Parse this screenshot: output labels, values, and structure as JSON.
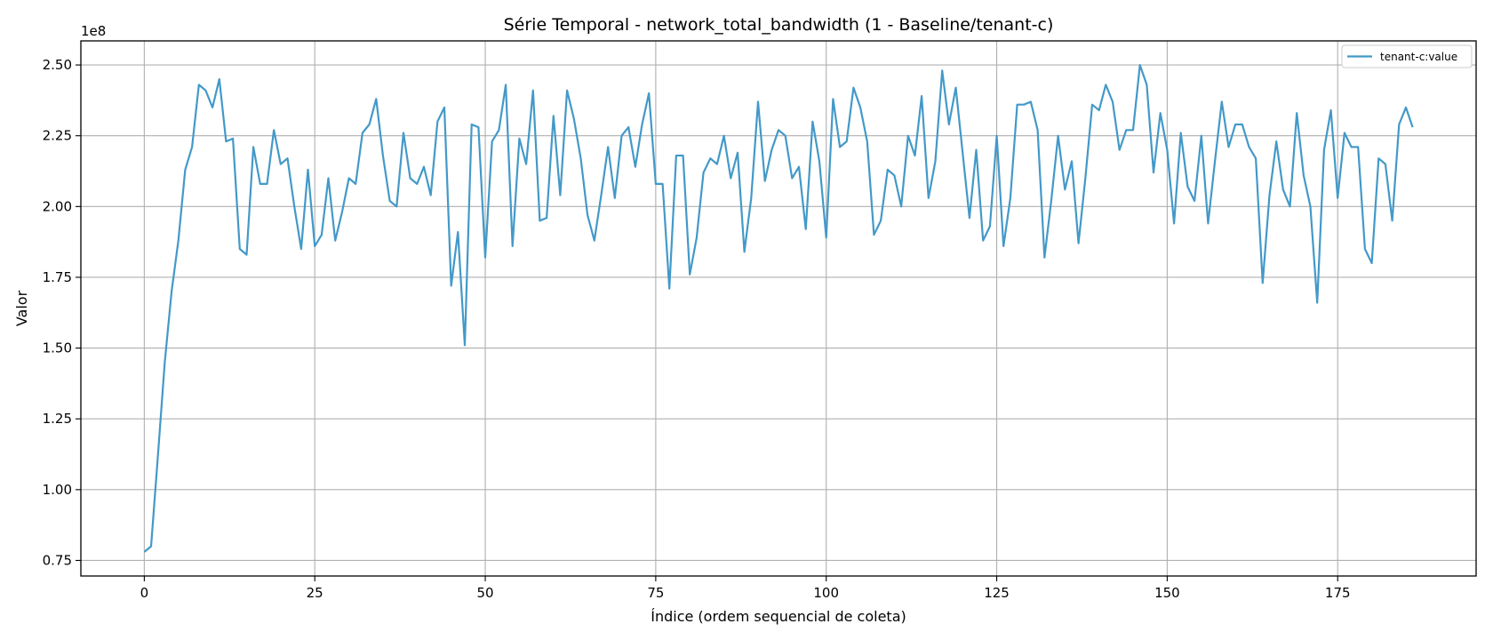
{
  "chart_data": {
    "type": "line",
    "title": "Série Temporal - network_total_bandwidth (1 - Baseline/tenant-c)",
    "xlabel": "Índice (ordem sequencial de coleta)",
    "ylabel": "Valor",
    "y_offset_label": "1e8",
    "y_scale": 100000000,
    "xlim": [
      -9.3,
      195.3
    ],
    "ylim": [
      0.695,
      2.585
    ],
    "x_ticks": [
      0,
      25,
      50,
      75,
      100,
      125,
      150,
      175
    ],
    "x_tick_labels": [
      "0",
      "25",
      "50",
      "75",
      "100",
      "125",
      "150",
      "175"
    ],
    "y_ticks": [
      0.75,
      1.0,
      1.25,
      1.5,
      1.75,
      2.0,
      2.25,
      2.5
    ],
    "y_tick_labels": [
      "0.75",
      "1.00",
      "1.25",
      "1.50",
      "1.75",
      "2.00",
      "2.25",
      "2.50"
    ],
    "grid": true,
    "legend_position": "top-right",
    "color": "#4399c8",
    "series": [
      {
        "name": "tenant-c:value",
        "x_start": 0,
        "values": [
          0.78,
          0.8,
          1.12,
          1.45,
          1.7,
          1.88,
          2.13,
          2.21,
          2.43,
          2.41,
          2.35,
          2.45,
          2.23,
          2.24,
          1.85,
          1.83,
          2.21,
          2.08,
          2.08,
          2.27,
          2.15,
          2.17,
          2.0,
          1.85,
          2.13,
          1.86,
          1.9,
          2.1,
          1.88,
          1.98,
          2.1,
          2.08,
          2.26,
          2.29,
          2.38,
          2.18,
          2.02,
          2.0,
          2.26,
          2.1,
          2.08,
          2.14,
          2.04,
          2.3,
          2.35,
          1.72,
          1.91,
          1.51,
          2.29,
          2.28,
          1.82,
          2.23,
          2.27,
          2.43,
          1.86,
          2.24,
          2.15,
          2.41,
          1.95,
          1.96,
          2.32,
          2.04,
          2.41,
          2.31,
          2.17,
          1.97,
          1.88,
          2.04,
          2.21,
          2.03,
          2.25,
          2.28,
          2.14,
          2.29,
          2.4,
          2.08,
          2.08,
          1.71,
          2.18,
          2.18,
          1.76,
          1.89,
          2.12,
          2.17,
          2.15,
          2.25,
          2.1,
          2.19,
          1.84,
          2.03,
          2.37,
          2.09,
          2.2,
          2.27,
          2.25,
          2.1,
          2.14,
          1.92,
          2.3,
          2.16,
          1.89,
          2.38,
          2.21,
          2.23,
          2.42,
          2.35,
          2.23,
          1.9,
          1.95,
          2.13,
          2.11,
          2.0,
          2.25,
          2.18,
          2.39,
          2.03,
          2.16,
          2.48,
          2.29,
          2.42,
          2.19,
          1.96,
          2.2,
          1.88,
          1.93,
          2.25,
          1.86,
          2.03,
          2.36,
          2.36,
          2.37,
          2.27,
          1.82,
          2.02,
          2.25,
          2.06,
          2.16,
          1.87,
          2.1,
          2.36,
          2.34,
          2.43,
          2.37,
          2.2,
          2.27,
          2.27,
          2.5,
          2.43,
          2.12,
          2.33,
          2.2,
          1.94,
          2.26,
          2.07,
          2.02,
          2.25,
          1.94,
          2.16,
          2.37,
          2.21,
          2.29,
          2.29,
          2.21,
          2.17,
          1.73,
          2.04,
          2.23,
          2.06,
          2.0,
          2.33,
          2.11,
          2.0,
          1.66,
          2.2,
          2.34,
          2.03,
          2.26,
          2.21,
          2.21,
          1.85,
          1.8,
          2.17,
          2.15,
          1.95,
          2.29,
          2.35,
          2.28
        ]
      }
    ]
  }
}
